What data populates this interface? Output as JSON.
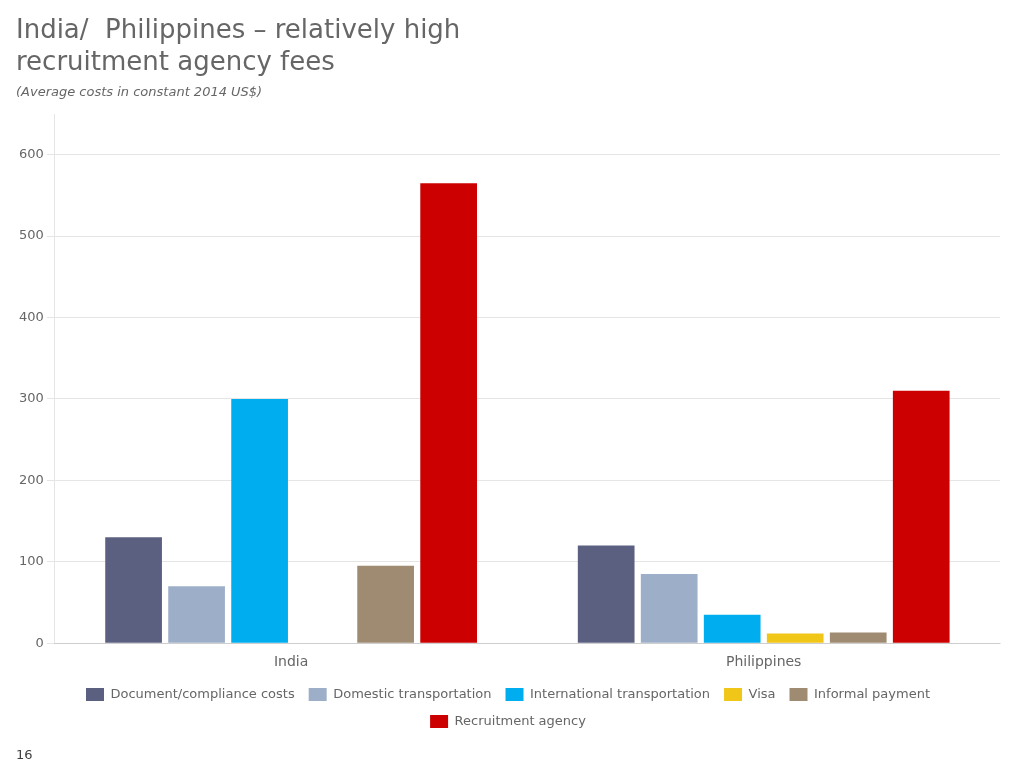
{
  "chart_data": {
    "type": "bar",
    "title": [
      "India/  Philippines – relatively high",
      "recruitment agency fees"
    ],
    "subtitle": "(Average costs in constant 2014 US$)",
    "categories": [
      "India",
      "Philippines"
    ],
    "series": [
      {
        "name": "Document/compliance costs",
        "color": "#5B6080",
        "values": [
          130,
          120
        ]
      },
      {
        "name": "Domestic transportation",
        "color": "#9DAFC8",
        "values": [
          70,
          85
        ]
      },
      {
        "name": "International transportation",
        "color": "#00AEEF",
        "values": [
          300,
          35
        ]
      },
      {
        "name": "Visa",
        "color": "#F0C619",
        "values": [
          0,
          12
        ]
      },
      {
        "name": "Informal payment",
        "color": "#9E8B72",
        "values": [
          95,
          13
        ]
      },
      {
        "name": "Recruitment agency",
        "color": "#CC0000",
        "values": [
          565,
          310
        ]
      }
    ],
    "ylim": [
      0,
      650
    ],
    "yticks": [
      0,
      100,
      200,
      300,
      400,
      500,
      600
    ],
    "grid": true,
    "legend": "bottom",
    "annotations": [
      "16"
    ]
  }
}
